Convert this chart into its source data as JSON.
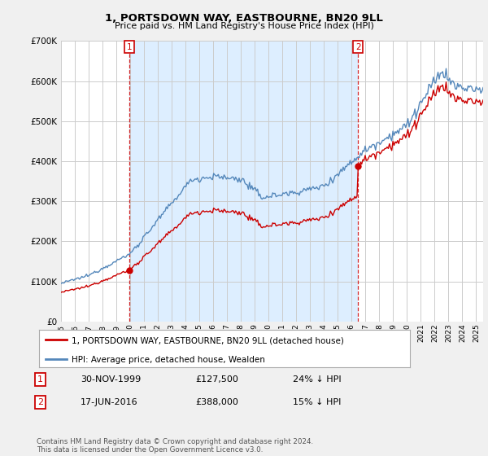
{
  "title": "1, PORTSDOWN WAY, EASTBOURNE, BN20 9LL",
  "subtitle": "Price paid vs. HM Land Registry's House Price Index (HPI)",
  "legend_label_red": "1, PORTSDOWN WAY, EASTBOURNE, BN20 9LL (detached house)",
  "legend_label_blue": "HPI: Average price, detached house, Wealden",
  "table_rows": [
    {
      "num": "1",
      "date": "30-NOV-1999",
      "price": "£127,500",
      "hpi": "24% ↓ HPI"
    },
    {
      "num": "2",
      "date": "17-JUN-2016",
      "price": "£388,000",
      "hpi": "15% ↓ HPI"
    }
  ],
  "footnote": "Contains HM Land Registry data © Crown copyright and database right 2024.\nThis data is licensed under the Open Government Licence v3.0.",
  "sale1_year": 1999.917,
  "sale1_price": 127500,
  "sale2_year": 2016.46,
  "sale2_price": 388000,
  "ylim": [
    0,
    700000
  ],
  "xlim_start": 1995.0,
  "xlim_end": 2025.5,
  "red_color": "#cc0000",
  "blue_color": "#5588bb",
  "shade_color": "#ddeeff",
  "background_color": "#f0f0f0",
  "plot_bg_color": "#ffffff",
  "grid_color": "#cccccc"
}
